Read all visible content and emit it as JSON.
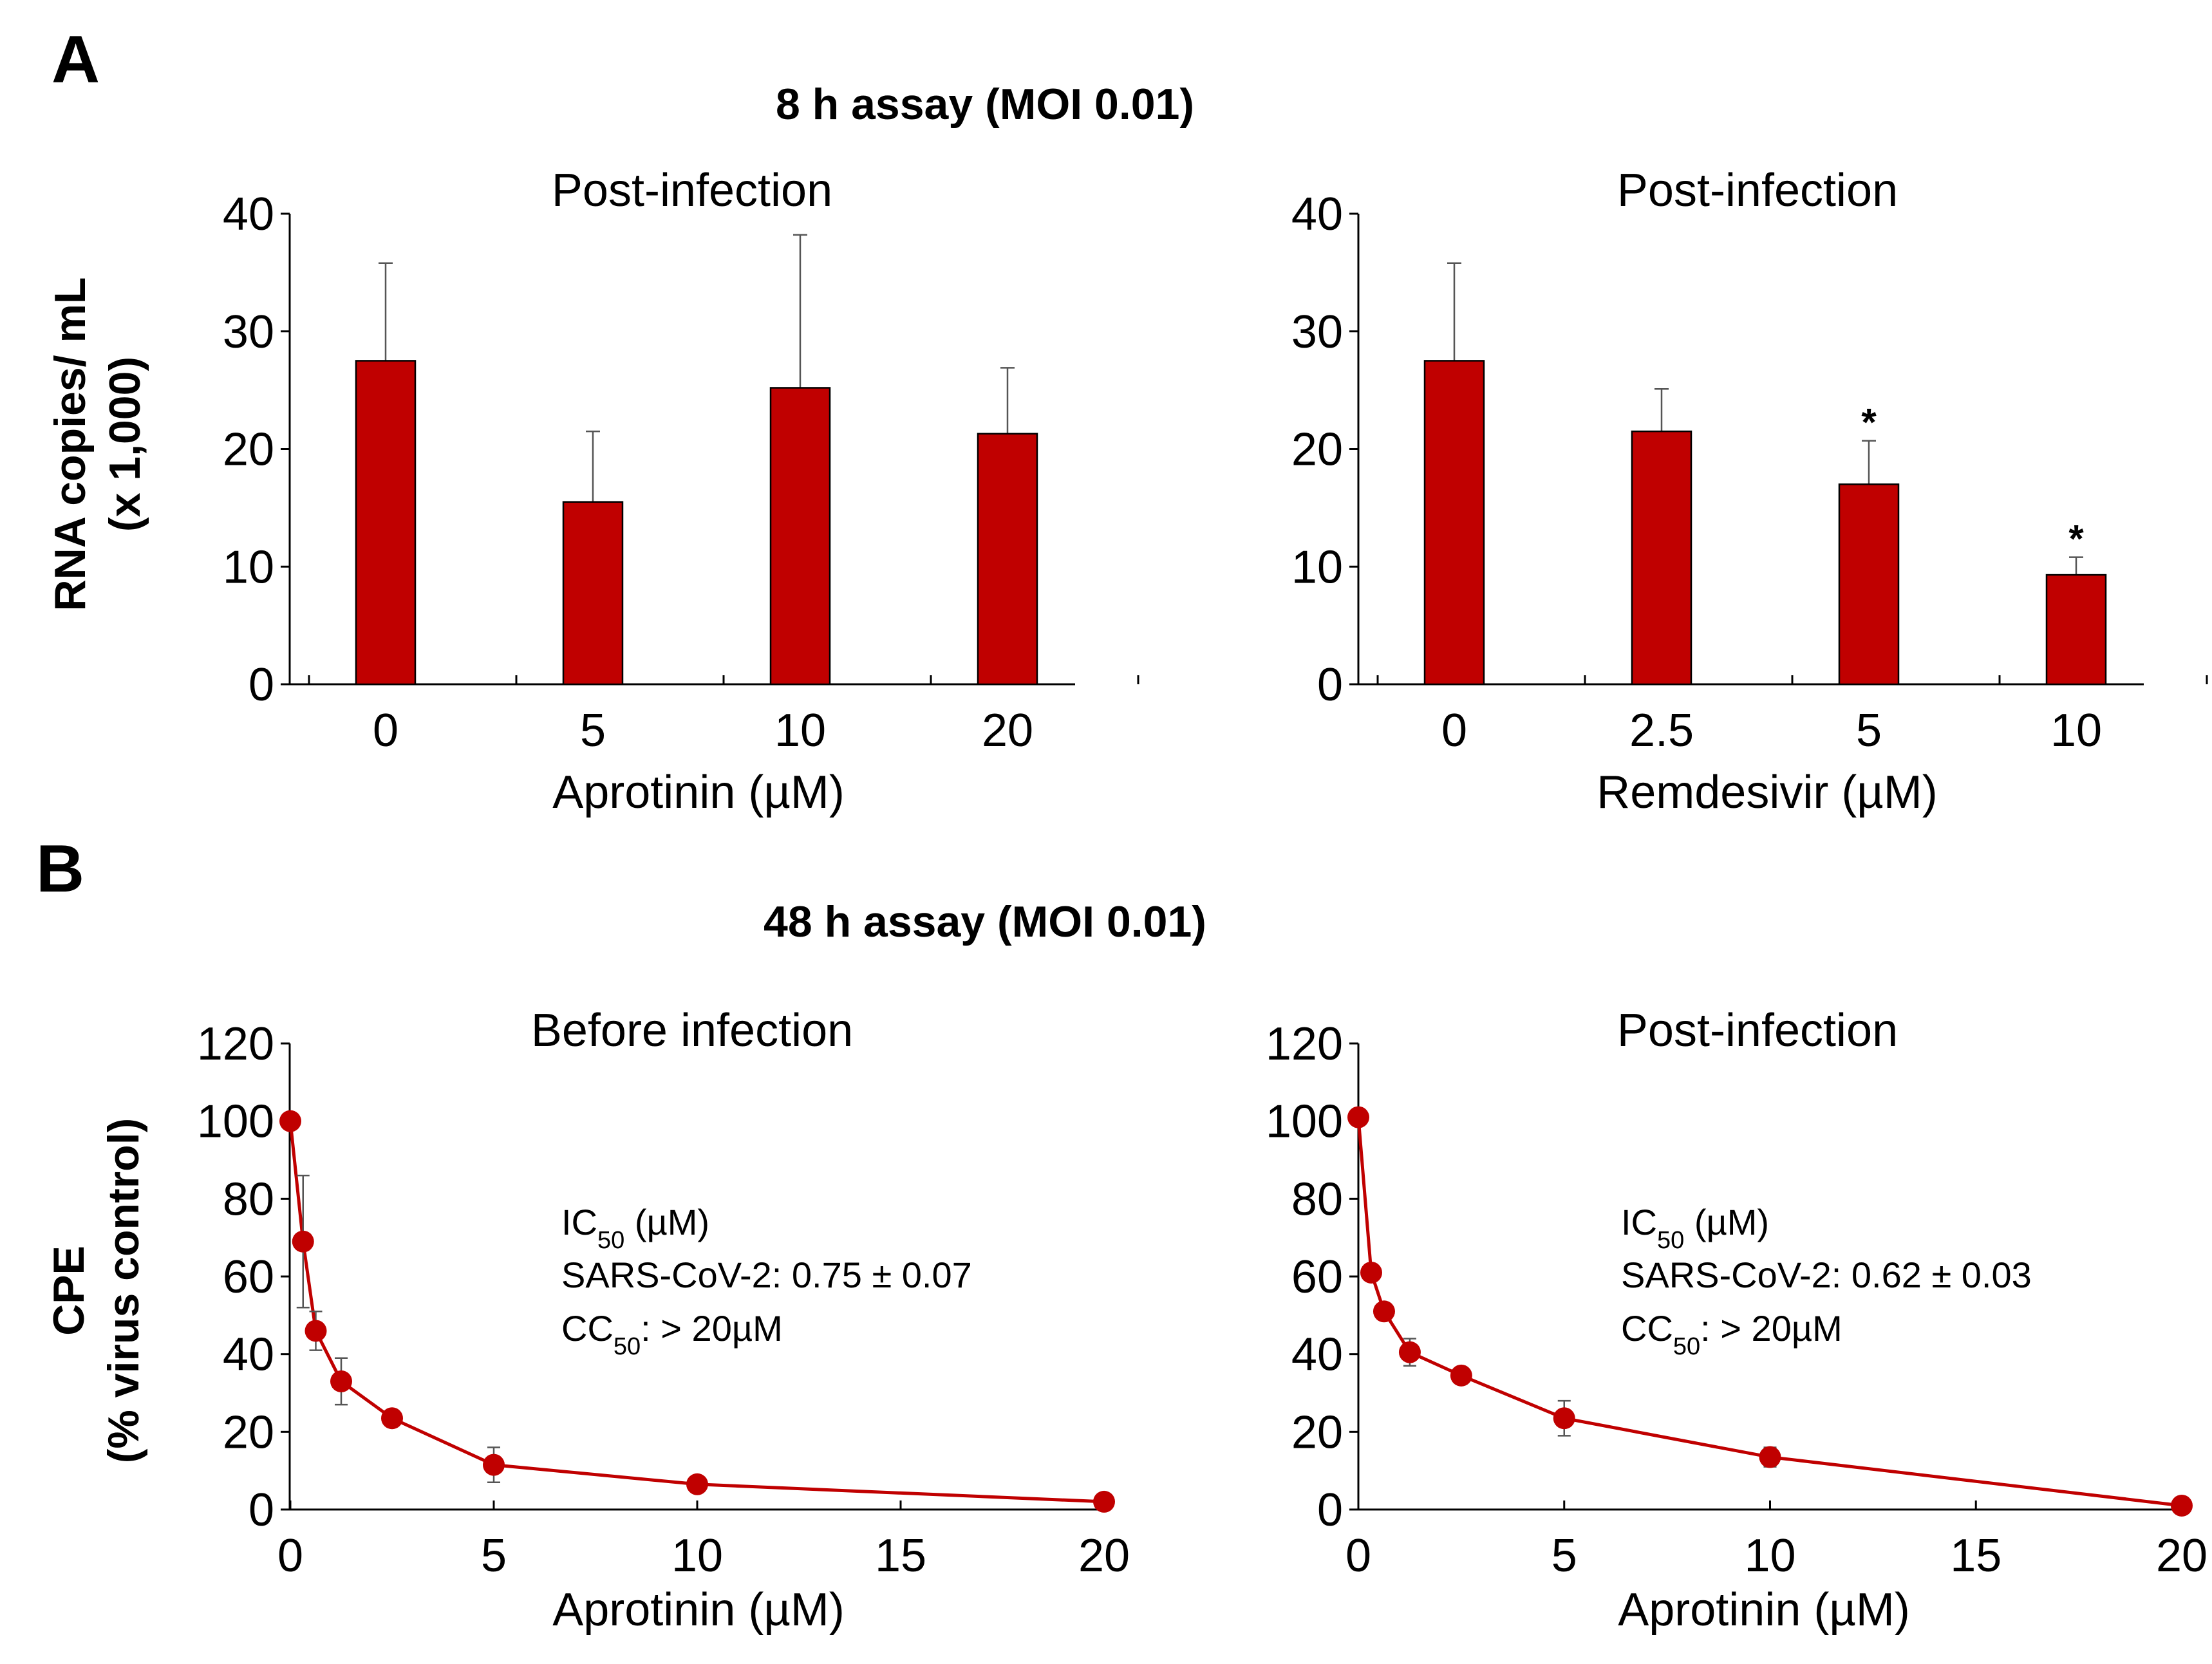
{
  "panels": {
    "A": {
      "letter": "A",
      "title": "8 h assay (MOI 0.01)",
      "ylabel_line1": "RNA copies/ mL",
      "ylabel_line2": "(x 1,000)"
    },
    "B": {
      "letter": "B",
      "title": "48 h assay (MOI 0.01)",
      "ylabel_line1": "CPE",
      "ylabel_line2": "(% virus control)"
    }
  },
  "chart_data": [
    {
      "id": "A1",
      "type": "bar",
      "title": "Post-infection",
      "xlabel": "Aprotinin (µM)",
      "ylabel": "RNA copies/ mL (x 1,000)",
      "categories": [
        "0",
        "5",
        "10",
        "20"
      ],
      "values": [
        27.5,
        15.5,
        25.2,
        21.3
      ],
      "errors": [
        8.3,
        6.0,
        13.0,
        5.6
      ],
      "significance": [
        "",
        "",
        "",
        ""
      ],
      "ylim": [
        0,
        40
      ],
      "yticks": [
        "0",
        "10",
        "20",
        "30",
        "40"
      ],
      "bar_color": "#c00000"
    },
    {
      "id": "A2",
      "type": "bar",
      "title": "Post-infection",
      "xlabel": "Remdesivir (µM)",
      "ylabel": "RNA copies/ mL (x 1,000)",
      "categories": [
        "0",
        "2.5",
        "5",
        "10"
      ],
      "values": [
        27.5,
        21.5,
        17.0,
        9.3
      ],
      "errors": [
        8.3,
        3.6,
        3.7,
        1.5
      ],
      "significance": [
        "",
        "",
        "*",
        "*"
      ],
      "ylim": [
        0,
        40
      ],
      "yticks": [
        "0",
        "10",
        "20",
        "30",
        "40"
      ],
      "bar_color": "#c00000"
    },
    {
      "id": "B1",
      "type": "line",
      "title": "Before infection",
      "xlabel": "Aprotinin (µM)",
      "ylabel": "CPE (% virus control)",
      "x": [
        0,
        0.3125,
        0.625,
        1.25,
        2.5,
        5,
        10,
        20
      ],
      "y": [
        100,
        69,
        46,
        33,
        23.5,
        11.5,
        6.5,
        2
      ],
      "errors": [
        0,
        17,
        5,
        6,
        0,
        4.5,
        0,
        0
      ],
      "xlim": [
        0,
        20
      ],
      "ylim": [
        0,
        120
      ],
      "xticks": [
        0,
        5,
        10,
        15,
        20
      ],
      "xtick_labels": [
        "0",
        "5",
        "10",
        "15",
        "20"
      ],
      "yticks": [
        "0",
        "20",
        "40",
        "60",
        "80",
        "100",
        "120"
      ],
      "color": "#c00000",
      "annotation": {
        "ic50_prefix": "IC",
        "ic50_sub": "50",
        "ic50_suffix": " (µM)",
        "line2": "SARS-CoV-2: 0.75 ± 0.07",
        "cc50_prefix": "CC",
        "cc50_sub": "50",
        "cc50_suffix": ": > 20µM"
      }
    },
    {
      "id": "B2",
      "type": "line",
      "title": "Post-infection",
      "xlabel": "Aprotinin (µM)",
      "ylabel": "CPE (% virus control)",
      "x": [
        0,
        0.3125,
        0.625,
        1.25,
        2.5,
        5,
        10,
        20
      ],
      "y": [
        101,
        61,
        51,
        40.5,
        34.5,
        23.5,
        13.5,
        1
      ],
      "errors": [
        0,
        0,
        0,
        3.5,
        0,
        4.5,
        2.5,
        0
      ],
      "xlim": [
        0,
        20
      ],
      "ylim": [
        0,
        120
      ],
      "xticks": [
        0,
        5,
        10,
        15,
        20
      ],
      "xtick_labels": [
        "0",
        "5",
        "10",
        "15",
        "20"
      ],
      "yticks": [
        "0",
        "20",
        "40",
        "60",
        "80",
        "100",
        "120"
      ],
      "color": "#c00000",
      "annotation": {
        "ic50_prefix": "IC",
        "ic50_sub": "50",
        "ic50_suffix": " (µM)",
        "line2": "SARS-CoV-2: 0.62 ± 0.03",
        "cc50_prefix": "CC",
        "cc50_sub": "50",
        "cc50_suffix": ": > 20µM"
      }
    }
  ]
}
